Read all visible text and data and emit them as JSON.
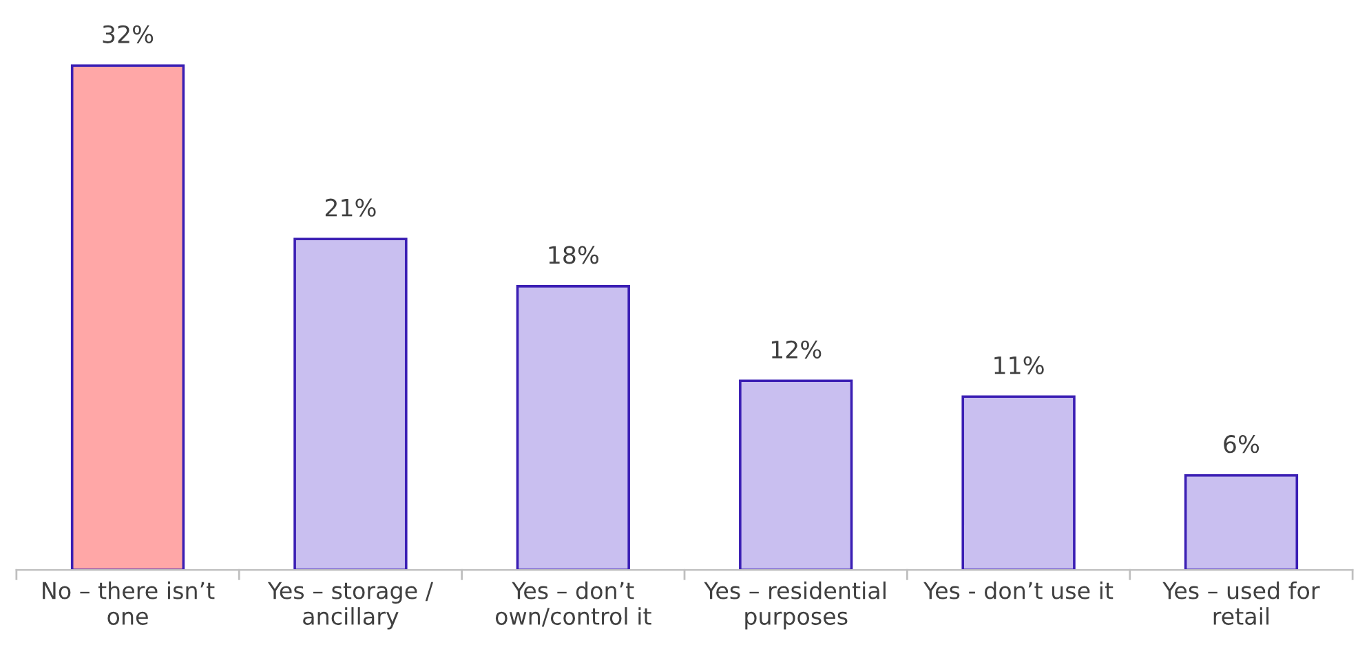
{
  "chart_data": {
    "type": "bar",
    "categories": [
      "No – there isn’t\none",
      "Yes – storage /\nancillary",
      "Yes – don’t\nown/control it",
      "Yes – residential\npurposes",
      "Yes - don’t use it",
      "Yes – used for\nretail"
    ],
    "values": [
      32,
      21,
      18,
      12,
      11,
      6
    ],
    "colors": [
      "#ffa7a7",
      "#c9bff0",
      "#c9bff0",
      "#c9bff0",
      "#c9bff0",
      "#c9bff0"
    ],
    "value_labels": [
      "32%",
      "21%",
      "18%",
      "12%",
      "11%",
      "6%"
    ],
    "grid": false,
    "legend": false
  }
}
